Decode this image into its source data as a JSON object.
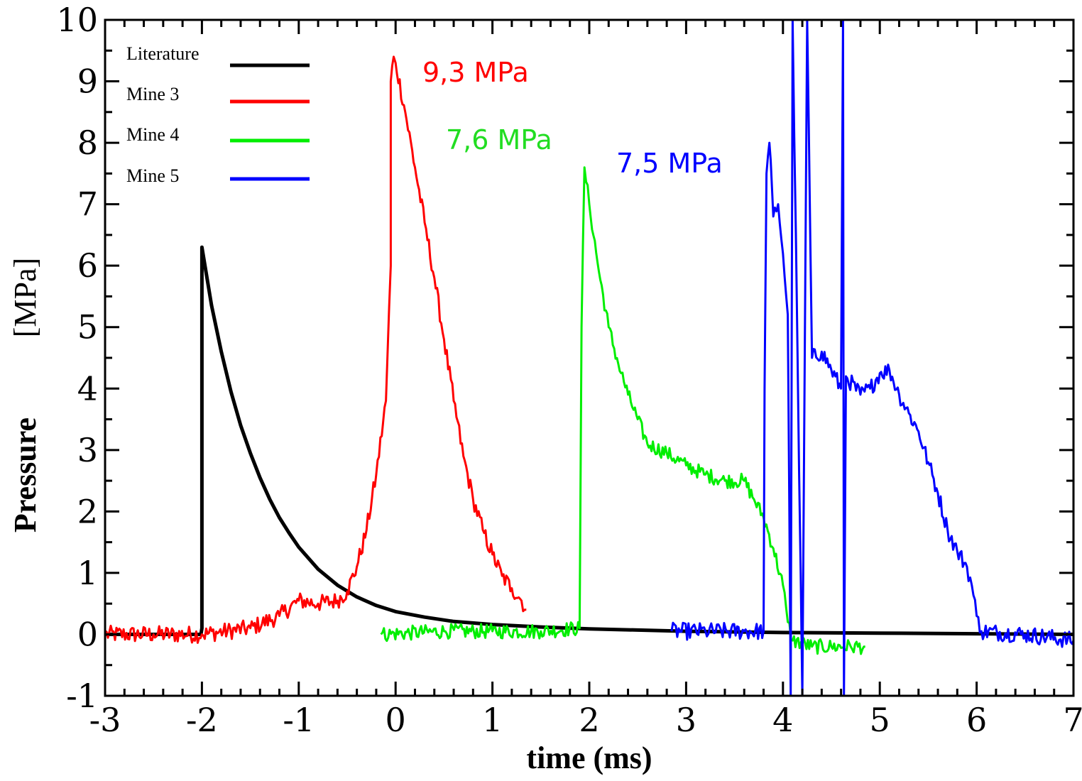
{
  "chart_data": {
    "type": "line",
    "title": "",
    "xlabel": "time (ms)",
    "ylabel_bold": "Pressure",
    "ylabel_unit": "[MPa]",
    "xlim": [
      -3,
      7
    ],
    "ylim": [
      -1,
      10
    ],
    "xticks": [
      -3,
      -2,
      -1,
      0,
      1,
      2,
      3,
      4,
      5,
      6,
      7
    ],
    "yticks": [
      -1,
      0,
      1,
      2,
      3,
      4,
      5,
      6,
      7,
      8,
      9,
      10
    ],
    "grid": false,
    "legend_position": "top-left",
    "series": [
      {
        "name": "Literature",
        "color": "#000000",
        "points": [
          [
            -3,
            0
          ],
          [
            -2.01,
            0
          ],
          [
            -2.0,
            0.1
          ],
          [
            -2.0,
            6.3
          ],
          [
            -1.9,
            5.35
          ],
          [
            -1.8,
            4.6
          ],
          [
            -1.7,
            3.95
          ],
          [
            -1.6,
            3.4
          ],
          [
            -1.5,
            2.95
          ],
          [
            -1.4,
            2.55
          ],
          [
            -1.3,
            2.2
          ],
          [
            -1.2,
            1.9
          ],
          [
            -1.1,
            1.65
          ],
          [
            -1.0,
            1.42
          ],
          [
            -0.8,
            1.06
          ],
          [
            -0.6,
            0.8
          ],
          [
            -0.4,
            0.61
          ],
          [
            -0.2,
            0.47
          ],
          [
            0.0,
            0.37
          ],
          [
            0.3,
            0.28
          ],
          [
            0.6,
            0.21
          ],
          [
            1.0,
            0.16
          ],
          [
            1.5,
            0.12
          ],
          [
            2.0,
            0.09
          ],
          [
            2.5,
            0.07
          ],
          [
            3.0,
            0.05
          ],
          [
            4.0,
            0.03
          ],
          [
            5.0,
            0.02
          ],
          [
            6.0,
            0.01
          ],
          [
            7.0,
            0.0
          ]
        ]
      },
      {
        "name": "Mine 3",
        "color": "#ff0000",
        "points": [
          [
            -3,
            0
          ],
          [
            -2.5,
            0
          ],
          [
            -2.0,
            0.0
          ],
          [
            -1.5,
            0.1
          ],
          [
            -1.2,
            0.3
          ],
          [
            -1.0,
            0.55
          ],
          [
            -0.8,
            0.5
          ],
          [
            -0.6,
            0.55
          ],
          [
            -0.5,
            0.7
          ],
          [
            -0.4,
            1.1
          ],
          [
            -0.3,
            1.7
          ],
          [
            -0.2,
            2.6
          ],
          [
            -0.1,
            3.8
          ],
          [
            -0.05,
            6.0
          ],
          [
            -0.05,
            9.0
          ],
          [
            -0.02,
            9.4
          ],
          [
            0.0,
            9.3
          ],
          [
            0.1,
            8.5
          ],
          [
            0.2,
            7.6
          ],
          [
            0.3,
            6.7
          ],
          [
            0.4,
            5.8
          ],
          [
            0.5,
            4.8
          ],
          [
            0.6,
            3.8
          ],
          [
            0.7,
            2.9
          ],
          [
            0.8,
            2.2
          ],
          [
            0.9,
            1.7
          ],
          [
            1.0,
            1.3
          ],
          [
            1.1,
            0.95
          ],
          [
            1.2,
            0.75
          ],
          [
            1.3,
            0.55
          ],
          [
            1.35,
            0.4
          ]
        ],
        "annotation": "9,3 MPa"
      },
      {
        "name": "Mine 4",
        "color": "#00ee00",
        "points": [
          [
            -0.15,
            0
          ],
          [
            0.5,
            0.05
          ],
          [
            1.0,
            0.05
          ],
          [
            1.5,
            0.05
          ],
          [
            1.9,
            0.1
          ],
          [
            1.92,
            5.0
          ],
          [
            1.95,
            7.6
          ],
          [
            2.0,
            7.0
          ],
          [
            2.1,
            5.9
          ],
          [
            2.2,
            5.0
          ],
          [
            2.3,
            4.4
          ],
          [
            2.4,
            3.9
          ],
          [
            2.5,
            3.5
          ],
          [
            2.6,
            3.1
          ],
          [
            2.8,
            2.95
          ],
          [
            3.0,
            2.75
          ],
          [
            3.2,
            2.6
          ],
          [
            3.4,
            2.5
          ],
          [
            3.6,
            2.5
          ],
          [
            3.7,
            2.2
          ],
          [
            3.8,
            1.9
          ],
          [
            3.9,
            1.4
          ],
          [
            4.0,
            0.8
          ],
          [
            4.05,
            0.2
          ],
          [
            4.1,
            -0.1
          ],
          [
            4.3,
            -0.2
          ],
          [
            4.5,
            -0.2
          ],
          [
            4.7,
            -0.2
          ],
          [
            4.85,
            -0.2
          ]
        ],
        "annotation": "7,6 MPa"
      },
      {
        "name": "Mine 5",
        "color": "#0000ff",
        "points": [
          [
            2.85,
            0.05
          ],
          [
            3.2,
            0.05
          ],
          [
            3.6,
            0.05
          ],
          [
            3.8,
            0.05
          ],
          [
            3.81,
            4.0
          ],
          [
            3.83,
            7.5
          ],
          [
            3.86,
            8.0
          ],
          [
            3.9,
            6.8
          ],
          [
            3.95,
            7.0
          ],
          [
            4.0,
            6.2
          ],
          [
            4.05,
            5.2
          ],
          [
            4.08,
            -1.0
          ],
          [
            4.1,
            10.0
          ],
          [
            4.15,
            4.6
          ],
          [
            4.2,
            -1.0
          ],
          [
            4.25,
            10.0
          ],
          [
            4.3,
            4.5
          ],
          [
            4.4,
            4.6
          ],
          [
            4.5,
            4.3
          ],
          [
            4.6,
            4.0
          ],
          [
            4.62,
            10.0
          ],
          [
            4.63,
            -1.0
          ],
          [
            4.65,
            4.2
          ],
          [
            4.8,
            3.9
          ],
          [
            4.9,
            4.0
          ],
          [
            5.0,
            4.25
          ],
          [
            5.1,
            4.3
          ],
          [
            5.2,
            3.9
          ],
          [
            5.3,
            3.6
          ],
          [
            5.4,
            3.3
          ],
          [
            5.5,
            2.8
          ],
          [
            5.6,
            2.3
          ],
          [
            5.7,
            1.7
          ],
          [
            5.8,
            1.35
          ],
          [
            5.9,
            1.1
          ],
          [
            5.95,
            0.8
          ],
          [
            6.0,
            0.3
          ],
          [
            6.05,
            0.05
          ],
          [
            6.5,
            0.0
          ],
          [
            7.0,
            -0.1
          ]
        ],
        "annotation": "7,5 MPa"
      }
    ]
  }
}
